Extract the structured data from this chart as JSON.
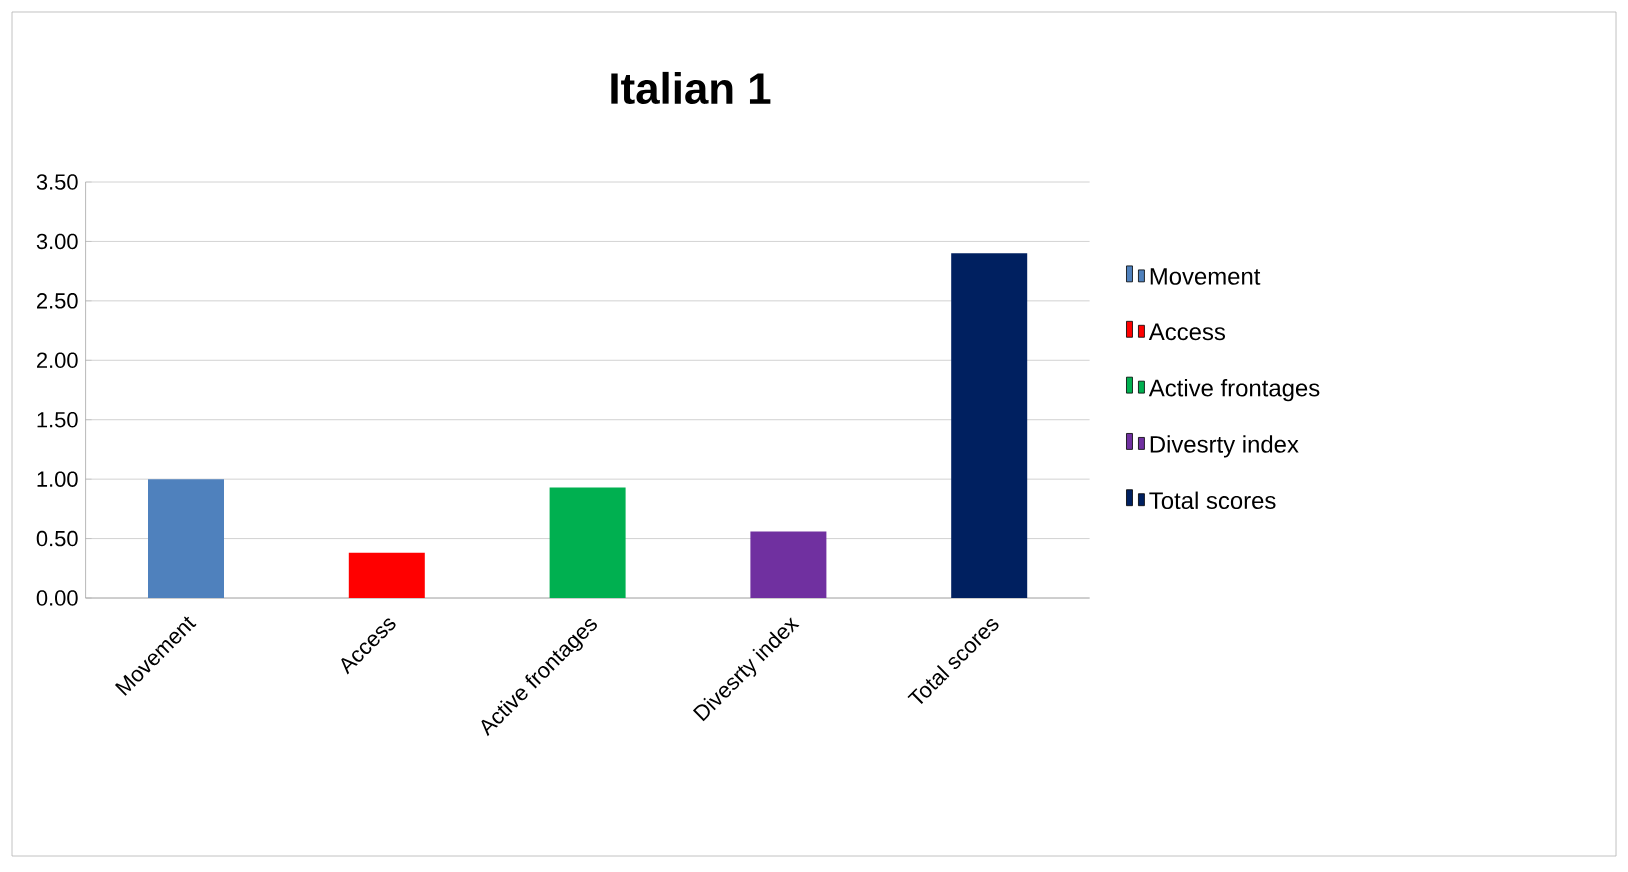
{
  "chart_data": {
    "type": "bar",
    "title": "Italian 1",
    "categories": [
      "Movement",
      "Access",
      "Active frontages",
      "Divesrty index",
      "Total scores"
    ],
    "series": [
      {
        "name": "Movement",
        "color": "#4f81bd",
        "values": [
          1.0,
          null,
          null,
          null,
          null
        ]
      },
      {
        "name": "Access",
        "color": "#ff0000",
        "values": [
          null,
          0.38,
          null,
          null,
          null
        ]
      },
      {
        "name": "Active frontages",
        "color": "#00b050",
        "values": [
          null,
          null,
          0.93,
          null,
          null
        ]
      },
      {
        "name": "Divesrty index",
        "color": "#7030a0",
        "values": [
          null,
          null,
          null,
          0.56,
          null
        ]
      },
      {
        "name": "Total scores",
        "color": "#002060",
        "values": [
          null,
          null,
          null,
          null,
          2.9
        ]
      }
    ],
    "ylim": [
      0,
      3.5
    ],
    "yticks": [
      {
        "value": 0,
        "label": "0.00"
      },
      {
        "value": 0.5,
        "label": "0.50"
      },
      {
        "value": 1,
        "label": "1.00"
      },
      {
        "value": 1.5,
        "label": "1.50"
      },
      {
        "value": 2,
        "label": "2.00"
      },
      {
        "value": 2.5,
        "label": "2.50"
      },
      {
        "value": 3,
        "label": "3.00"
      },
      {
        "value": 3.5,
        "label": "3.50"
      }
    ],
    "grid": "y",
    "legend": "right"
  }
}
